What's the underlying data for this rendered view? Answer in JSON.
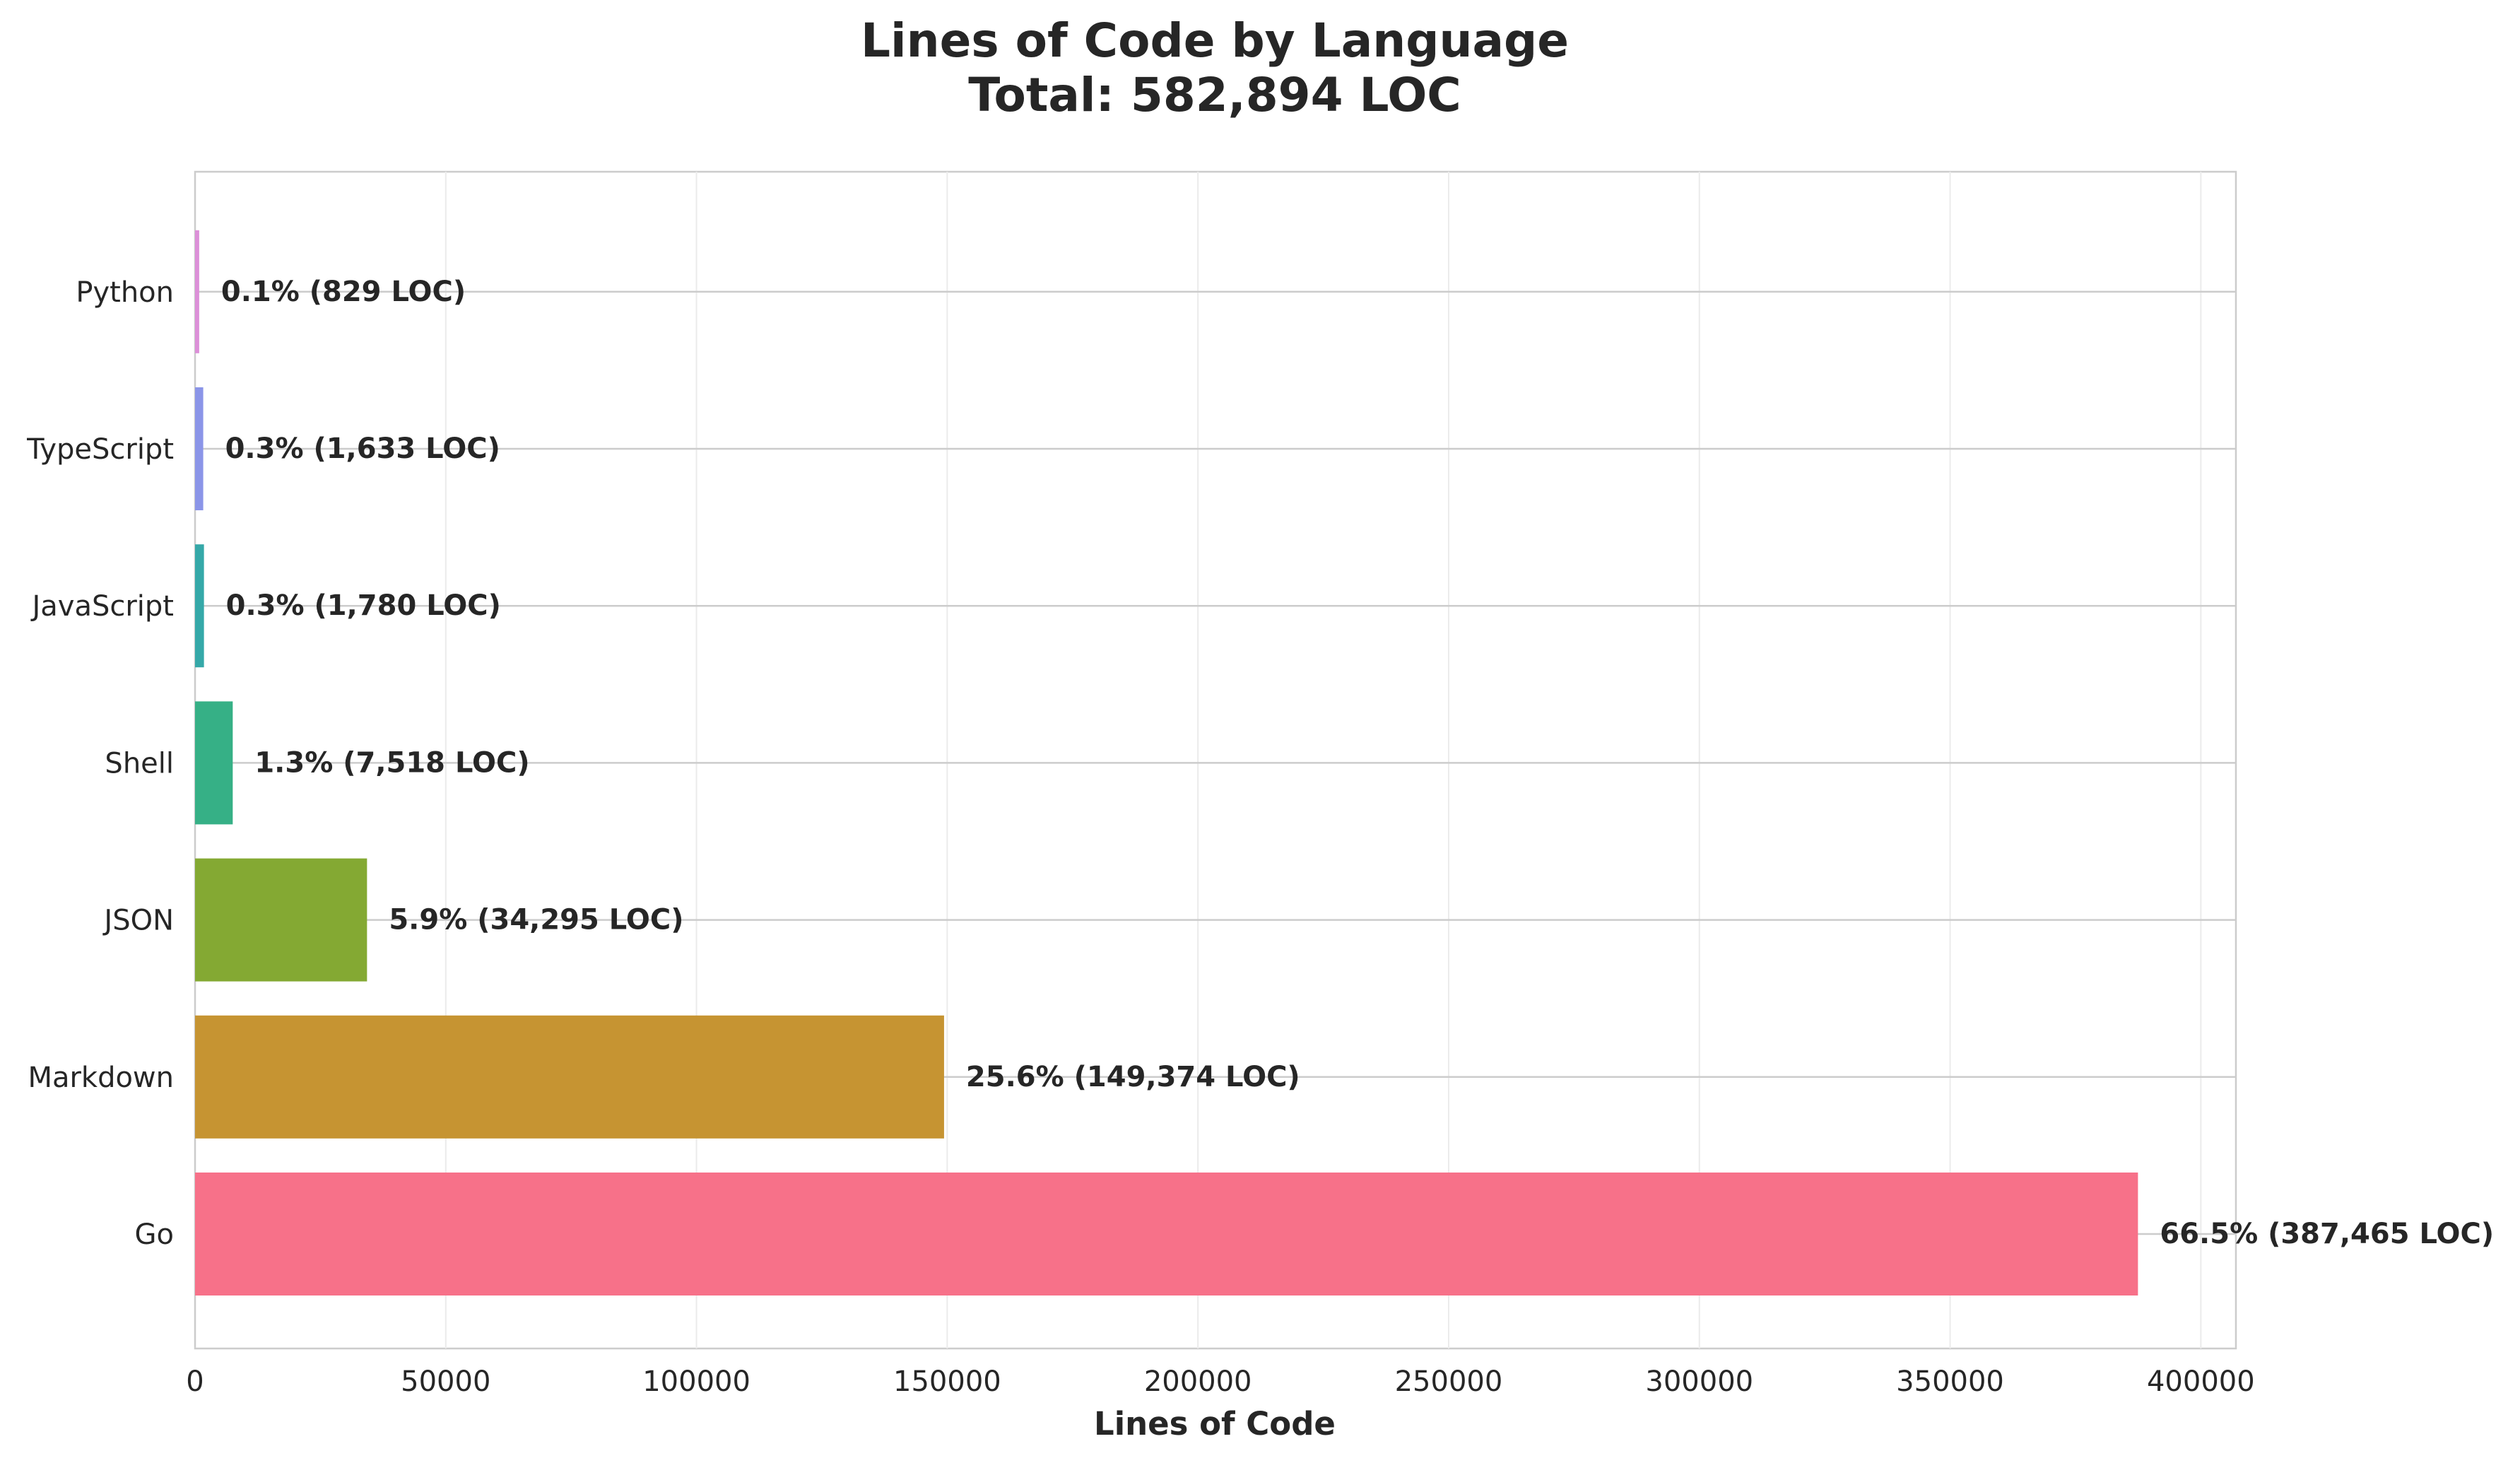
{
  "chart_data": {
    "type": "bar",
    "orientation": "horizontal",
    "title": "Lines of Code by Language",
    "subtitle": "Total: 582,894 LOC",
    "xlabel": "Lines of Code",
    "ylabel": "",
    "xlim": [
      0,
      407000
    ],
    "xticks": [
      0,
      50000,
      100000,
      150000,
      200000,
      250000,
      300000,
      350000,
      400000
    ],
    "xtick_labels": [
      "0",
      "50000",
      "100000",
      "150000",
      "200000",
      "250000",
      "300000",
      "350000",
      "400000"
    ],
    "grid": true,
    "categories": [
      "Python",
      "TypeScript",
      "JavaScript",
      "Shell",
      "JSON",
      "Markdown",
      "Go"
    ],
    "values": [
      829,
      1633,
      1780,
      7518,
      34295,
      149374,
      387465
    ],
    "data_labels": [
      "0.1% (829 LOC)",
      "0.3% (1,633 LOC)",
      "0.3% (1,780 LOC)",
      "1.3% (7,518 LOC)",
      "5.9% (34,295 LOC)",
      "25.6% (149,374 LOC)",
      "66.5% (387,465 LOC)"
    ],
    "colors": [
      "#dc8fd8",
      "#8b95e8",
      "#35a8a8",
      "#36b086",
      "#84a933",
      "#c69432",
      "#f77189"
    ]
  }
}
